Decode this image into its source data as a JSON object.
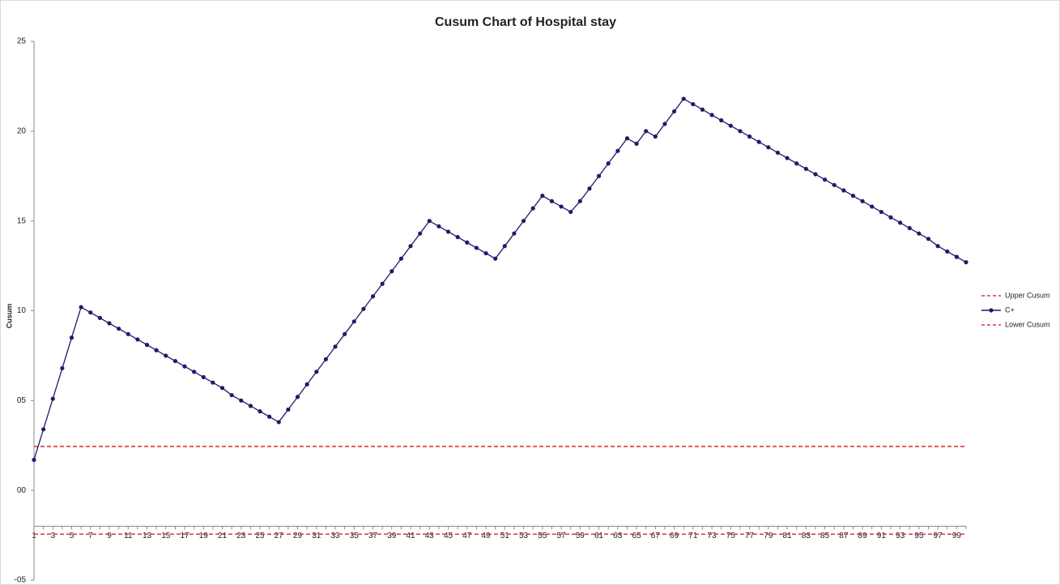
{
  "chart_data": {
    "type": "line",
    "title": "Cusum Chart of Hospital stay",
    "y_label": "Cusum",
    "categories": [
      "1",
      null,
      "3",
      null,
      "5",
      null,
      "7",
      null,
      "9",
      null,
      "11",
      null,
      "13",
      null,
      "15",
      null,
      "17",
      null,
      "19",
      null,
      "21",
      null,
      "23",
      null,
      "25",
      null,
      "27",
      null,
      "29",
      null,
      "31",
      null,
      "33",
      null,
      "35",
      null,
      "37",
      null,
      "39",
      null,
      "41",
      null,
      "43",
      null,
      "45",
      null,
      "47",
      null,
      "49",
      null,
      "51",
      null,
      "53",
      null,
      "55",
      null,
      "57",
      null,
      "59",
      null,
      "61",
      null,
      "63",
      null,
      "65",
      null,
      "67",
      null,
      "69",
      null,
      "71",
      null,
      "73",
      null,
      "75",
      null,
      "77",
      null,
      "79",
      null,
      "81",
      null,
      "83",
      null,
      "85",
      null,
      "87",
      null,
      "89",
      null,
      "91",
      null,
      "93",
      null,
      "95",
      null,
      "97",
      null,
      "99",
      null
    ],
    "series": [
      {
        "name": "Upper Cusum",
        "color": "#d93a3a",
        "dashed": true,
        "markers": false,
        "values": [
          2.44,
          2.44,
          2.44,
          2.44,
          2.44,
          2.44,
          2.44,
          2.44,
          2.44,
          2.44,
          2.44,
          2.44,
          2.44,
          2.44,
          2.44,
          2.44,
          2.44,
          2.44,
          2.44,
          2.44,
          2.44,
          2.44,
          2.44,
          2.44,
          2.44,
          2.44,
          2.44,
          2.44,
          2.44,
          2.44,
          2.44,
          2.44,
          2.44,
          2.44,
          2.44,
          2.44,
          2.44,
          2.44,
          2.44,
          2.44,
          2.44,
          2.44,
          2.44,
          2.44,
          2.44,
          2.44,
          2.44,
          2.44,
          2.44,
          2.44,
          2.44,
          2.44,
          2.44,
          2.44,
          2.44,
          2.44,
          2.44,
          2.44,
          2.44,
          2.44,
          2.44,
          2.44,
          2.44,
          2.44,
          2.44,
          2.44,
          2.44,
          2.44,
          2.44,
          2.44,
          2.44,
          2.44,
          2.44,
          2.44,
          2.44,
          2.44,
          2.44,
          2.44,
          2.44,
          2.44,
          2.44,
          2.44,
          2.44,
          2.44,
          2.44,
          2.44,
          2.44,
          2.44,
          2.44,
          2.44,
          2.44,
          2.44,
          2.44,
          2.44,
          2.44,
          2.44,
          2.44,
          2.44,
          2.44,
          2.44
        ]
      },
      {
        "name": "C+",
        "color": "#1c1c6b",
        "dashed": false,
        "markers": true,
        "values": [
          1.7,
          3.4,
          5.1,
          6.8,
          8.5,
          10.2,
          9.9,
          9.6,
          9.3,
          9.0,
          8.7,
          8.4,
          8.1,
          7.8,
          7.5,
          7.2,
          6.9,
          6.6,
          6.3,
          6.0,
          5.7,
          5.3,
          5.0,
          4.7,
          4.4,
          4.1,
          3.8,
          4.5,
          5.2,
          5.9,
          6.6,
          7.3,
          8.0,
          8.7,
          9.4,
          10.1,
          10.8,
          11.5,
          12.2,
          12.9,
          13.6,
          14.3,
          15.0,
          14.7,
          14.4,
          14.1,
          13.8,
          13.5,
          13.2,
          12.9,
          13.6,
          14.3,
          15.0,
          15.7,
          16.4,
          16.1,
          15.8,
          15.5,
          16.1,
          16.8,
          17.5,
          18.2,
          18.9,
          19.6,
          19.3,
          20.0,
          19.7,
          20.4,
          21.1,
          21.8,
          21.5,
          21.2,
          20.9,
          20.6,
          20.3,
          20.0,
          19.7,
          19.4,
          19.1,
          18.8,
          18.5,
          18.2,
          17.9,
          17.6,
          17.3,
          17.0,
          16.7,
          16.4,
          16.1,
          15.8,
          15.5,
          15.2,
          14.9,
          14.6,
          14.3,
          14.0,
          13.6,
          13.3,
          13.0,
          12.7
        ]
      },
      {
        "name": "Lower Cusum",
        "color": "#d93a3a",
        "dashed": true,
        "markers": false,
        "values": [
          -2.44,
          -2.44,
          -2.44,
          -2.44,
          -2.44,
          -2.44,
          -2.44,
          -2.44,
          -2.44,
          -2.44,
          -2.44,
          -2.44,
          -2.44,
          -2.44,
          -2.44,
          -2.44,
          -2.44,
          -2.44,
          -2.44,
          -2.44,
          -2.44,
          -2.44,
          -2.44,
          -2.44,
          -2.44,
          -2.44,
          -2.44,
          -2.44,
          -2.44,
          -2.44,
          -2.44,
          -2.44,
          -2.44,
          -2.44,
          -2.44,
          -2.44,
          -2.44,
          -2.44,
          -2.44,
          -2.44,
          -2.44,
          -2.44,
          -2.44,
          -2.44,
          -2.44,
          -2.44,
          -2.44,
          -2.44,
          -2.44,
          -2.44,
          -2.44,
          -2.44,
          -2.44,
          -2.44,
          -2.44,
          -2.44,
          -2.44,
          -2.44,
          -2.44,
          -2.44,
          -2.44,
          -2.44,
          -2.44,
          -2.44,
          -2.44,
          -2.44,
          -2.44,
          -2.44,
          -2.44,
          -2.44,
          -2.44,
          -2.44,
          -2.44,
          -2.44,
          -2.44,
          -2.44,
          -2.44,
          -2.44,
          -2.44,
          -2.44,
          -2.44,
          -2.44,
          -2.44,
          -2.44,
          -2.44,
          -2.44,
          -2.44,
          -2.44,
          -2.44,
          -2.44,
          -2.44,
          -2.44,
          -2.44,
          -2.44,
          -2.44,
          -2.44,
          -2.44,
          -2.44,
          -2.44,
          -2.44
        ]
      }
    ],
    "ylim": [
      -5,
      25
    ],
    "yticks": [
      25,
      20,
      15,
      10,
      {
        "value": 5,
        "label": "05"
      },
      {
        "value": 0,
        "label": "00"
      },
      {
        "value": -5,
        "label": "-05"
      }
    ],
    "xaxis_crosses": -2,
    "grid": false,
    "legend": "right"
  }
}
